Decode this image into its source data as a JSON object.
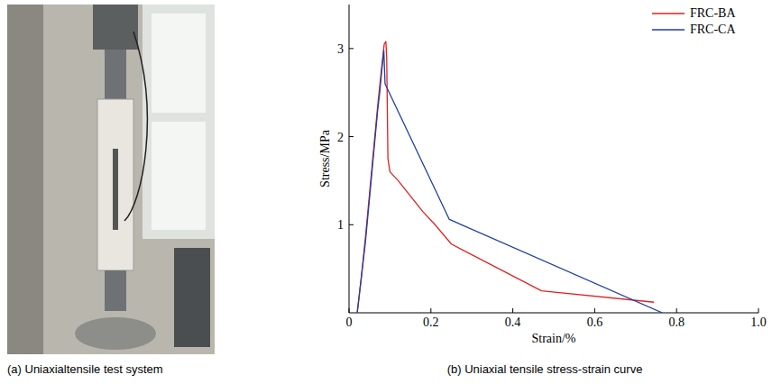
{
  "photo": {
    "caption": "(a) Uniaxialtensile test system"
  },
  "chart_data": {
    "type": "line",
    "title": "(b) Uniaxial tensile stress-strain curve",
    "x_label": "Strain/%",
    "y_label": "Stress/MPa",
    "xlim": [
      0,
      1
    ],
    "ylim": [
      0,
      3.5
    ],
    "xticks": [
      0,
      0.2,
      0.4,
      0.6,
      0.8,
      {
        "value": 1,
        "label": "1.0"
      }
    ],
    "yticks": [
      1,
      2,
      3
    ],
    "grid": false,
    "legend": "upper right",
    "series": [
      {
        "name": "FRC-BA",
        "color": "#e02020",
        "x": [
          0.02,
          0.03,
          0.04,
          0.05,
          0.06,
          0.07,
          0.08,
          0.086,
          0.09,
          0.092,
          0.095,
          0.1,
          0.12,
          0.18,
          0.21,
          0.25,
          0.47,
          0.745
        ],
        "values": [
          0,
          0.4,
          0.85,
          1.35,
          1.85,
          2.35,
          2.8,
          3.05,
          3.08,
          2.9,
          1.75,
          1.6,
          1.5,
          1.15,
          1.0,
          0.78,
          0.25,
          0.12
        ]
      },
      {
        "name": "FRC-CA",
        "color": "#2040a0",
        "x": [
          0.02,
          0.03,
          0.04,
          0.05,
          0.06,
          0.07,
          0.075,
          0.08,
          0.085,
          0.088,
          0.245,
          0.765
        ],
        "values": [
          0,
          0.4,
          0.8,
          1.3,
          1.8,
          2.3,
          2.5,
          2.75,
          2.98,
          2.6,
          1.06,
          0
        ]
      }
    ]
  }
}
